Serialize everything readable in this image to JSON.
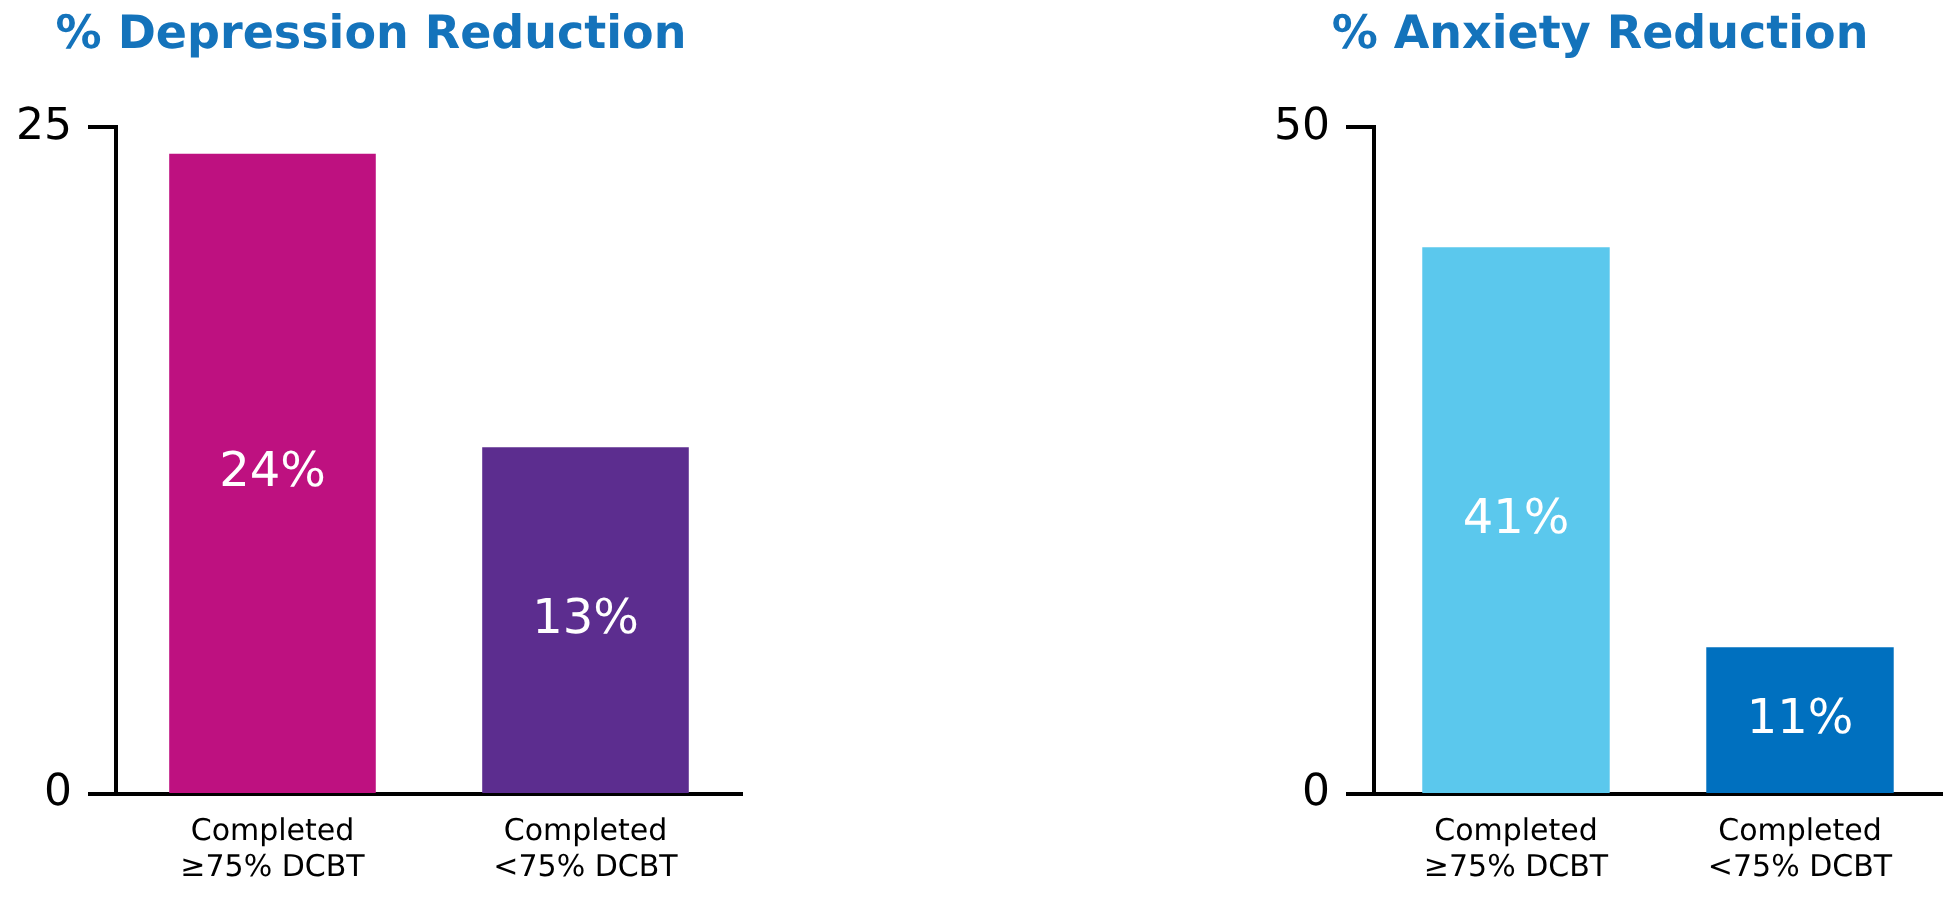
{
  "chart_data": [
    {
      "type": "bar",
      "title": "% Depression Reduction",
      "categories": [
        "Completed\n≥75% DCBT",
        "Completed\n<75% DCBT"
      ],
      "values": [
        24,
        13
      ],
      "colors": [
        "#be1180",
        "#5c2d8f"
      ],
      "value_labels": [
        "24%",
        "13%"
      ],
      "ylim": [
        0,
        25
      ],
      "yticks": [
        0,
        25
      ]
    },
    {
      "type": "bar",
      "title": "% Anxiety Reduction",
      "categories": [
        "Completed\n≥75% DCBT",
        "Completed\n<75% DCBT"
      ],
      "values": [
        41,
        11
      ],
      "colors": [
        "#5bc8ed",
        "#0070bf"
      ],
      "value_labels": [
        "41%",
        "11%"
      ],
      "ylim": [
        0,
        50
      ],
      "yticks": [
        0,
        50
      ]
    }
  ]
}
